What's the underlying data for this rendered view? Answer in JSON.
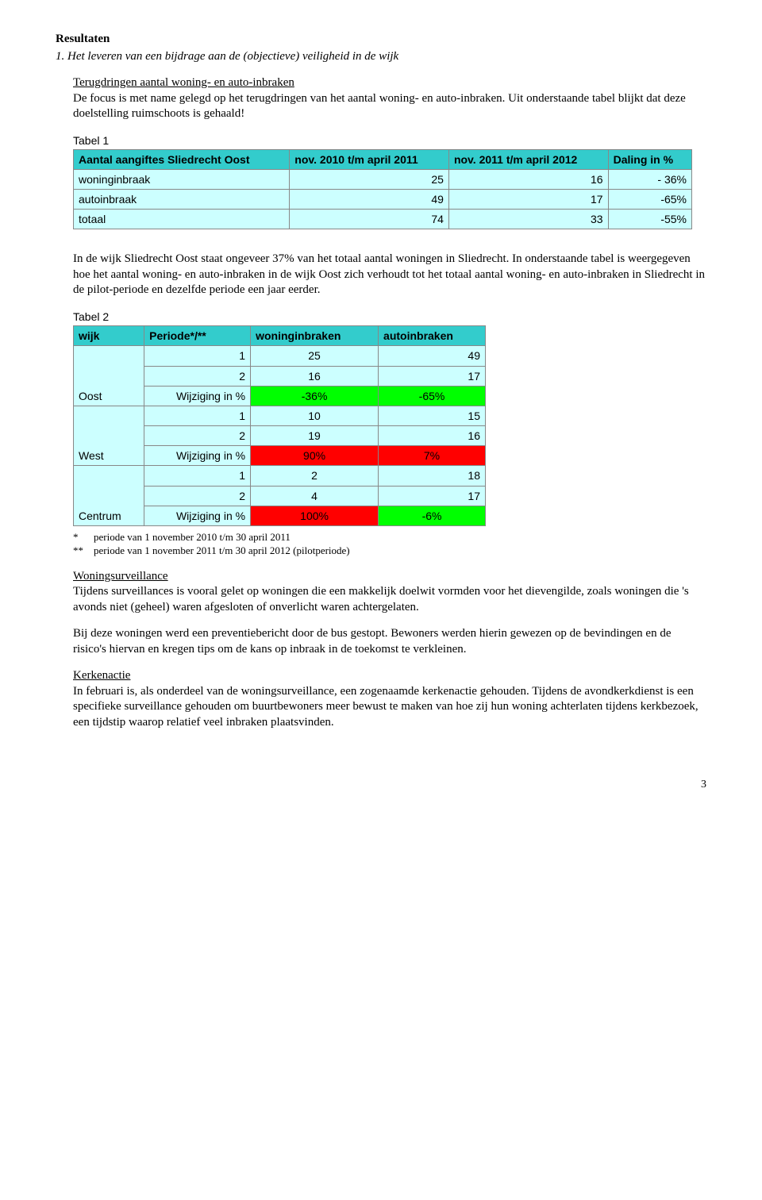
{
  "heading_resultaten": "Resultaten",
  "item1_title": "1.  Het leveren van een bijdrage aan de (objectieve) veiligheid in de wijk",
  "sub1_title": "Terugdringen aantal woning- en auto-inbraken",
  "sub1_para1": "De focus is met name gelegd op het terugdringen van het aantal woning- en auto-inbraken. Uit onderstaande tabel blijkt dat deze doelstelling ruimschoots is gehaald!",
  "table1_label": "Tabel 1",
  "table1": {
    "headers": [
      "Aantal aangiftes Sliedrecht Oost",
      "nov. 2010 t/m april 2011",
      "nov. 2011 t/m april 2012",
      "Daling in %"
    ],
    "rows": [
      {
        "label": "woninginbraak",
        "c1": "25",
        "c2": "16",
        "c3": "- 36%"
      },
      {
        "label": "autoinbraak",
        "c1": "49",
        "c2": "17",
        "c3": "-65%"
      },
      {
        "label": "totaal",
        "c1": "74",
        "c2": "33",
        "c3": "-55%"
      }
    ]
  },
  "sub1_para2": "In de wijk Sliedrecht Oost staat ongeveer 37% van het totaal aantal woningen in Sliedrecht. In onderstaande tabel is weergegeven hoe het aantal woning- en auto-inbraken in de wijk Oost zich verhoudt tot het totaal aantal woning- en auto-inbraken in Sliedrecht in de pilot-periode en dezelfde periode een jaar eerder.",
  "table2_label": "Tabel 2",
  "table2": {
    "headers": [
      "wijk",
      "Periode*/**",
      "woninginbraken",
      "autoinbraken"
    ],
    "groups": [
      {
        "name": "Oost",
        "r1": {
          "p": "1",
          "w": "25",
          "a": "49"
        },
        "r2": {
          "p": "2",
          "w": "16",
          "a": "17"
        },
        "change_label": "Wijziging in %",
        "w_change": "-36%",
        "w_color": "green",
        "a_change": "-65%",
        "a_color": "green"
      },
      {
        "name": "West",
        "r1": {
          "p": "1",
          "w": "10",
          "a": "15"
        },
        "r2": {
          "p": "2",
          "w": "19",
          "a": "16"
        },
        "change_label": "Wijziging in %",
        "w_change": "90%",
        "w_color": "red",
        "a_change": "7%",
        "a_color": "red"
      },
      {
        "name": "Centrum",
        "r1": {
          "p": "1",
          "w": "2",
          "a": "18"
        },
        "r2": {
          "p": "2",
          "w": "4",
          "a": "17"
        },
        "change_label": "Wijziging in %",
        "w_change": "100%",
        "w_color": "red",
        "a_change": "-6%",
        "a_color": "green"
      }
    ]
  },
  "footnote1_sym": "*",
  "footnote1_txt": "periode van 1 november 2010 t/m 30 april 2011",
  "footnote2_sym": "**",
  "footnote2_txt": "periode van 1 november 2011 t/m 30 april 2012 (pilotperiode)",
  "sub2_title": "Woningsurveillance",
  "sub2_para1": "Tijdens surveillances is vooral gelet op woningen die een makkelijk doelwit vormden voor het dievengilde, zoals woningen die 's avonds niet (geheel) waren afgesloten of onverlicht waren achtergelaten.",
  "sub2_para2": "Bij deze woningen werd een preventiebericht door de bus gestopt. Bewoners werden hierin gewezen op de bevindingen en de risico's hiervan en kregen tips om de kans op inbraak in de toekomst te verkleinen.",
  "sub3_title": "Kerkenactie",
  "sub3_para1": "In februari is, als onderdeel van de woningsurveillance, een zogenaamde kerkenactie gehouden. Tijdens de avondkerkdienst is een specifieke surveillance gehouden om buurtbewoners meer bewust te maken van hoe zij hun woning achterlaten tijdens kerkbezoek, een tijdstip waarop relatief veel inbraken plaatsvinden.",
  "page_number": "3"
}
